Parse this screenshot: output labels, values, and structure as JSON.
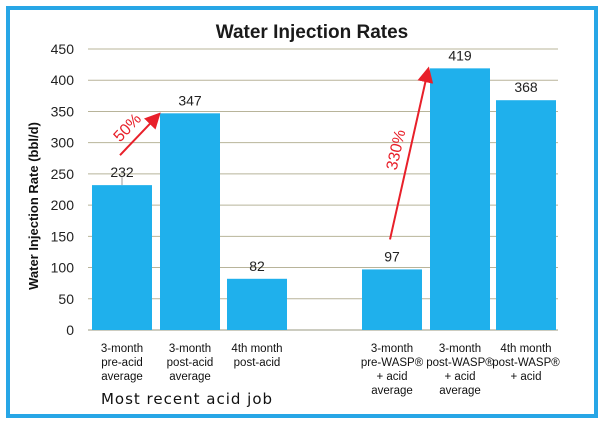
{
  "chart_data": {
    "type": "bar",
    "title": "Water Injection Rates",
    "ylabel": "Water Injection Rate (bbl/d)",
    "xlabel": "",
    "ylim": [
      0,
      450
    ],
    "yticks": [
      0,
      50,
      100,
      150,
      200,
      250,
      300,
      350,
      400,
      450
    ],
    "grid": true,
    "bar_color": "#1fb0ec",
    "categories": [
      [
        "3-month",
        "pre-acid",
        "average"
      ],
      [
        "3-month",
        "post-acid",
        "average"
      ],
      [
        "4th month",
        "post-acid"
      ],
      [
        "3-month",
        "pre-WASP®",
        "+ acid",
        "average"
      ],
      [
        "3-month",
        "post-WASP®",
        "+ acid",
        "average"
      ],
      [
        "4th month",
        "post-WASP®",
        "+ acid"
      ]
    ],
    "values": [
      232,
      347,
      82,
      97,
      419,
      368
    ],
    "value_labels": [
      "232",
      "347",
      "82",
      "97",
      "419",
      "368"
    ],
    "group_label": "Most recent acid job",
    "annotations": [
      {
        "text": "50%",
        "from_bar": 0,
        "to_bar": 1,
        "color": "#e8202a"
      },
      {
        "text": "330%",
        "from_bar": 3,
        "to_bar": 4,
        "color": "#e8202a"
      }
    ]
  }
}
